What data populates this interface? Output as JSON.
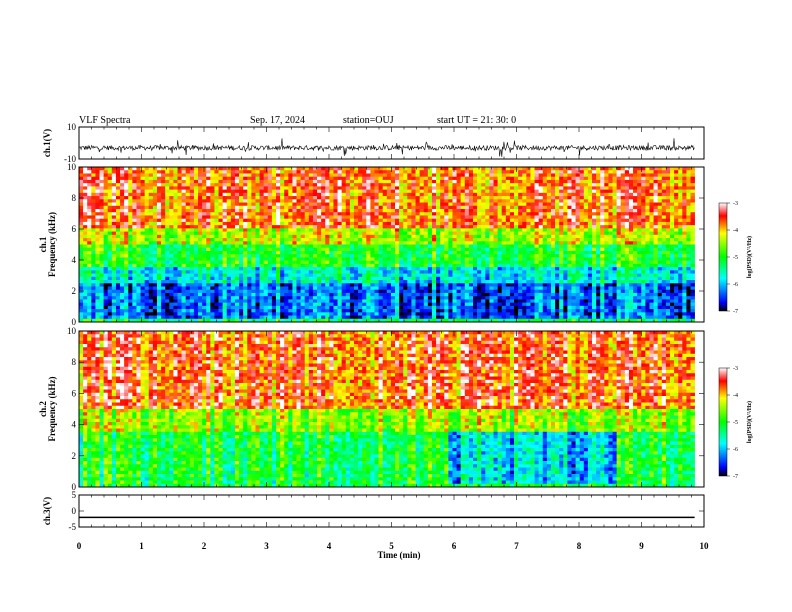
{
  "header": {
    "title": "VLF Spectra",
    "date": "Sep. 17, 2024",
    "station": "station=OUJ",
    "start": "start UT =  21: 30: 0"
  },
  "chart_data": [
    {
      "type": "line",
      "name": "ch1-waveform",
      "ylabel": "ch.1(V)",
      "ylim": [
        -10,
        10
      ],
      "yticks": [
        "10",
        "-10"
      ],
      "xlim": [
        0,
        10
      ],
      "mean": -3,
      "spread": "noisy"
    },
    {
      "type": "heatmap",
      "name": "ch1-spectrogram",
      "ylabel": "ch.1\nFrequency (kHz)",
      "ylim": [
        0,
        10
      ],
      "yticks": [
        "0",
        "2",
        "4",
        "6",
        "8",
        "10"
      ],
      "xlim": [
        0,
        9.85
      ],
      "colorbar": {
        "label": "log(PSD)(V²/Hz)",
        "range": [
          -7,
          -3
        ],
        "ticks": [
          "-3",
          "-4",
          "-5",
          "-6",
          "-7"
        ]
      }
    },
    {
      "type": "heatmap",
      "name": "ch2-spectrogram",
      "ylabel": "ch.2\nFrequency (kHz)",
      "ylim": [
        0,
        10
      ],
      "yticks": [
        "0",
        "2",
        "4",
        "6",
        "8",
        "10"
      ],
      "xlim": [
        0,
        9.85
      ],
      "colorbar": {
        "label": "log(PSD)(V²/Hz)",
        "range": [
          -7,
          -3
        ],
        "ticks": [
          "-3",
          "-4",
          "-5",
          "-6",
          "-7"
        ]
      }
    },
    {
      "type": "line",
      "name": "ch3-waveform",
      "ylabel": "ch.3(V)",
      "ylim": [
        -5,
        5
      ],
      "yticks": [
        "5",
        "0",
        "-5"
      ],
      "xlim": [
        0,
        10
      ],
      "value": -2
    }
  ],
  "xaxis": {
    "label": "Time (min)",
    "ticks": [
      "0",
      "1",
      "2",
      "3",
      "4",
      "5",
      "6",
      "7",
      "8",
      "9",
      "10"
    ]
  }
}
